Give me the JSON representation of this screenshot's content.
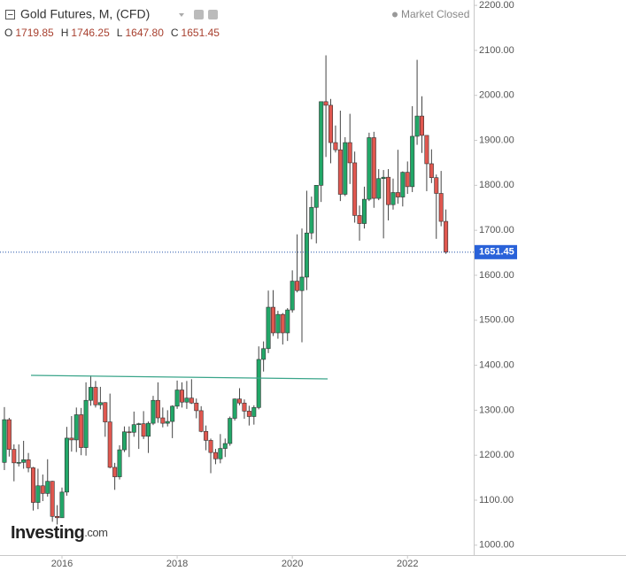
{
  "header": {
    "title": "Gold Futures, M, (CFD)",
    "status": "Market Closed",
    "ohlc_legend": [
      {
        "key": "O",
        "label": "1719.85"
      },
      {
        "key": "H",
        "label": "1746.25"
      },
      {
        "key": "L",
        "label": "1647.80"
      },
      {
        "key": "C",
        "label": "1651.45"
      }
    ]
  },
  "logo": {
    "name": "Investing",
    "suffix": ".com"
  },
  "chart_data": {
    "type": "candlestick",
    "categories": [
      null,
      null,
      null,
      null,
      null,
      null,
      null,
      null,
      null,
      null,
      null,
      null,
      "2016",
      null,
      null,
      null,
      null,
      null,
      null,
      null,
      null,
      null,
      null,
      null,
      null,
      null,
      null,
      null,
      null,
      null,
      null,
      null,
      null,
      null,
      null,
      null,
      "2018",
      null,
      null,
      null,
      null,
      null,
      null,
      null,
      null,
      null,
      null,
      null,
      null,
      null,
      null,
      null,
      null,
      null,
      null,
      null,
      null,
      null,
      null,
      null,
      "2020",
      null,
      null,
      null,
      null,
      null,
      null,
      null,
      null,
      null,
      null,
      null,
      null,
      null,
      null,
      null,
      null,
      null,
      null,
      null,
      null,
      null,
      null,
      null,
      "2022",
      null,
      null,
      null,
      null,
      null,
      null,
      null,
      null
    ],
    "open": [
      1184,
      1279,
      1213,
      1183,
      1184,
      1190,
      1172,
      1095,
      1132,
      1115,
      1142,
      1064,
      1061,
      1118,
      1238,
      1234,
      1290,
      1217,
      1322,
      1351,
      1312,
      1317,
      1274,
      1173,
      1152,
      1212,
      1252,
      1251,
      1268,
      1270,
      1242,
      1271,
      1322,
      1283,
      1271,
      1275,
      1309,
      1345,
      1318,
      1327,
      1316,
      1299,
      1253,
      1233,
      1206,
      1192,
      1215,
      1226,
      1282,
      1325,
      1316,
      1298,
      1286,
      1306,
      1413,
      1437,
      1529,
      1472,
      1513,
      1472,
      1523,
      1587,
      1566,
      1596,
      1694,
      1751,
      1800,
      1986,
      1978,
      1895,
      1879,
      1780,
      1895,
      1850,
      1733,
      1715,
      1769,
      1906,
      1771,
      1815,
      1818,
      1757,
      1784,
      1774,
      1829,
      1797,
      1909,
      1954,
      1911,
      1848,
      1817,
      1782,
      1719.85
    ],
    "high": [
      1307,
      1283,
      1224,
      1224,
      1232,
      1205,
      1174,
      1170,
      1157,
      1191,
      1143,
      1089,
      1128,
      1263,
      1287,
      1306,
      1305,
      1362,
      1377,
      1365,
      1352,
      1318,
      1337,
      1183,
      1222,
      1264,
      1264,
      1297,
      1272,
      1298,
      1275,
      1332,
      1362,
      1306,
      1300,
      1311,
      1366,
      1362,
      1365,
      1369,
      1326,
      1309,
      1266,
      1237,
      1214,
      1247,
      1237,
      1286,
      1326,
      1349,
      1324,
      1310,
      1311,
      1442,
      1453,
      1566,
      1567,
      1521,
      1516,
      1527,
      1611,
      1691,
      1704,
      1788,
      1775,
      1800,
      1985,
      2089,
      1992,
      1933,
      1966,
      1907,
      1959,
      1875,
      1755,
      1797,
      1917,
      1919,
      1836,
      1834,
      1836,
      1815,
      1879,
      1831,
      1853,
      1976,
      2079,
      1998,
      1910,
      1880,
      1824,
      1832,
      1746.25
    ],
    "low": [
      1167,
      1197,
      1142,
      1175,
      1170,
      1162,
      1077,
      1080,
      1098,
      1108,
      1052,
      1046,
      1061,
      1110,
      1208,
      1207,
      1200,
      1199,
      1310,
      1306,
      1302,
      1241,
      1171,
      1123,
      1146,
      1207,
      1196,
      1241,
      1214,
      1236,
      1205,
      1267,
      1272,
      1262,
      1264,
      1238,
      1303,
      1306,
      1303,
      1314,
      1282,
      1251,
      1211,
      1160,
      1180,
      1182,
      1196,
      1221,
      1277,
      1311,
      1281,
      1266,
      1268,
      1302,
      1386,
      1427,
      1465,
      1459,
      1446,
      1454,
      1517,
      1562,
      1451,
      1567,
      1680,
      1671,
      1763,
      1863,
      1849,
      1873,
      1765,
      1776,
      1803,
      1717,
      1677,
      1704,
      1765,
      1750,
      1767,
      1682,
      1722,
      1746,
      1759,
      1753,
      1781,
      1785,
      1890,
      1872,
      1787,
      1805,
      1681,
      1709,
      1647.8
    ],
    "close": [
      1279,
      1213,
      1183,
      1184,
      1190,
      1172,
      1095,
      1132,
      1115,
      1142,
      1064,
      1061,
      1118,
      1238,
      1234,
      1290,
      1217,
      1322,
      1351,
      1312,
      1317,
      1274,
      1173,
      1152,
      1212,
      1252,
      1251,
      1268,
      1270,
      1242,
      1271,
      1322,
      1283,
      1271,
      1275,
      1309,
      1345,
      1318,
      1327,
      1316,
      1299,
      1253,
      1233,
      1206,
      1192,
      1215,
      1226,
      1282,
      1325,
      1316,
      1298,
      1286,
      1306,
      1413,
      1437,
      1529,
      1472,
      1513,
      1472,
      1523,
      1587,
      1566,
      1596,
      1694,
      1751,
      1800,
      1986,
      1978,
      1895,
      1879,
      1780,
      1895,
      1850,
      1733,
      1715,
      1769,
      1906,
      1771,
      1815,
      1818,
      1757,
      1784,
      1774,
      1829,
      1797,
      1909,
      1954,
      1911,
      1848,
      1817,
      1782,
      1719.85,
      1651.45
    ],
    "up_color": "#22a768",
    "down_color": "#e0574f",
    "ylim": [
      978,
      2212
    ],
    "yticks": [
      {
        "value": 1000,
        "label": "1000.00"
      },
      {
        "value": 1100,
        "label": "1100.00"
      },
      {
        "value": 1200,
        "label": "1200.00"
      },
      {
        "value": 1300,
        "label": "1300.00"
      },
      {
        "value": 1400,
        "label": "1400.00"
      },
      {
        "value": 1500,
        "label": "1500.00"
      },
      {
        "value": 1600,
        "label": "1600.00"
      },
      {
        "value": 1700,
        "label": "1700.00"
      },
      {
        "value": 1800,
        "label": "1800.00"
      },
      {
        "value": 1900,
        "label": "1900.00"
      },
      {
        "value": 2000,
        "label": "2000.00"
      },
      {
        "value": 2100,
        "label": "2100.00"
      },
      {
        "value": 2200,
        "label": "2200.00"
      }
    ],
    "grid": false
  }
}
